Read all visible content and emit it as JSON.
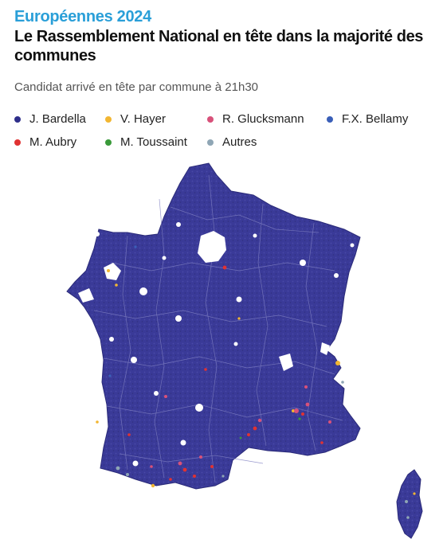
{
  "header": {
    "kicker": "Européennes 2024",
    "title": "Le Rassemblement National en tête dans la majorité des communes",
    "subtitle": "Candidat arrivé en tête par commune à 21h30"
  },
  "legend": [
    {
      "label": "J. Bardella",
      "color": "#2e2e8a"
    },
    {
      "label": "V. Hayer",
      "color": "#f2b632"
    },
    {
      "label": "R. Glucksmann",
      "color": "#d8517a"
    },
    {
      "label": "F.X. Bellamy",
      "color": "#3a5fb8"
    },
    {
      "label": "M. Aubry",
      "color": "#e03232"
    },
    {
      "label": "M. Toussaint",
      "color": "#3a9a3a"
    },
    {
      "label": "Autres",
      "color": "#8fa6b5"
    }
  ],
  "map": {
    "territory_color": "#3b3b9a",
    "border_color": "#8a8acb"
  }
}
